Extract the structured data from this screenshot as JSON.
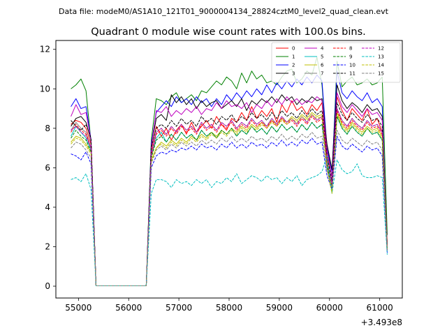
{
  "chart_data": {
    "type": "line",
    "suptitle": "Data file: modeM0/AS1A10_121T01_9000004134_28824cztM0_level2_quad_clean.evt",
    "title": "Quadrant 0 module wise count rates with 100.0s bins.",
    "xlabel": "",
    "ylabel": "",
    "x_offset_label": "+3.493e8",
    "xlim": [
      54550,
      61450
    ],
    "ylim": [
      -0.6,
      12.45
    ],
    "xticks": [
      55000,
      56000,
      57000,
      58000,
      59000,
      60000,
      61000
    ],
    "yticks": [
      0,
      2,
      4,
      6,
      8,
      10,
      12
    ],
    "x": [
      54850,
      54950,
      55050,
      55150,
      55250,
      55350,
      55450,
      55550,
      55650,
      55750,
      55850,
      55950,
      56050,
      56150,
      56250,
      56350,
      56450,
      56550,
      56650,
      56750,
      56850,
      56950,
      57050,
      57150,
      57250,
      57350,
      57450,
      57550,
      57650,
      57750,
      57850,
      57950,
      58050,
      58150,
      58250,
      58350,
      58450,
      58550,
      58650,
      58750,
      58850,
      58950,
      59050,
      59150,
      59250,
      59350,
      59450,
      59550,
      59650,
      59750,
      59850,
      59950,
      60050,
      60150,
      60250,
      60350,
      60450,
      60550,
      60650,
      60750,
      60850,
      60950,
      61050,
      61150
    ],
    "legend_location": "upper right",
    "series": [
      {
        "name": "0",
        "color": "#ff0000",
        "dash": "solid",
        "values": [
          8.2,
          8.4,
          8.3,
          8.0,
          7.2,
          0.02,
          0.02,
          0.02,
          0.02,
          0.02,
          0.02,
          0.02,
          0.02,
          0.02,
          0.02,
          0.02,
          6.9,
          8.1,
          7.6,
          8.0,
          7.4,
          7.9,
          8.2,
          7.7,
          8.3,
          7.8,
          8.1,
          8.4,
          8.0,
          8.6,
          8.2,
          7.9,
          8.5,
          8.3,
          8.8,
          8.4,
          9.1,
          8.5,
          8.9,
          8.6,
          9.0,
          8.3,
          9.2,
          8.8,
          9.4,
          8.9,
          9.1,
          8.7,
          9.2,
          8.9,
          9.3,
          6.6,
          5.6,
          9.6,
          8.9,
          8.4,
          9.0,
          8.7,
          8.4,
          9.0,
          8.2,
          8.5,
          7.8,
          2.2
        ]
      },
      {
        "name": "1",
        "color": "#008000",
        "dash": "solid",
        "values": [
          10.0,
          10.2,
          10.5,
          9.9,
          7.3,
          0.02,
          0.02,
          0.02,
          0.02,
          0.02,
          0.02,
          0.02,
          0.02,
          0.02,
          0.02,
          0.02,
          7.4,
          9.5,
          9.4,
          9.2,
          9.6,
          9.8,
          9.3,
          9.5,
          9.7,
          9.4,
          9.9,
          9.8,
          10.1,
          10.4,
          10.2,
          10.6,
          10.4,
          10.0,
          10.8,
          10.3,
          10.9,
          10.5,
          10.7,
          10.3,
          10.4,
          10.2,
          10.6,
          10.9,
          11.0,
          10.3,
          10.5,
          10.9,
          10.7,
          11.6,
          10.2,
          6.9,
          5.5,
          11.4,
          10.1,
          10.4,
          10.6,
          10.2,
          10.3,
          10.5,
          10.2,
          10.3,
          10.6,
          2.6
        ]
      },
      {
        "name": "2",
        "color": "#0000ff",
        "dash": "solid",
        "values": [
          9.1,
          9.5,
          9.0,
          9.1,
          7.4,
          0.02,
          0.02,
          0.02,
          0.02,
          0.02,
          0.02,
          0.02,
          0.02,
          0.02,
          0.02,
          0.02,
          7.2,
          8.8,
          9.1,
          9.4,
          9.1,
          9.6,
          9.3,
          9.5,
          9.2,
          9.6,
          9.3,
          9.5,
          9.1,
          9.5,
          9.2,
          9.7,
          9.4,
          9.8,
          9.5,
          9.9,
          9.6,
          10.0,
          9.7,
          10.2,
          9.8,
          10.3,
          10.0,
          10.4,
          10.1,
          10.5,
          10.2,
          10.6,
          10.3,
          10.7,
          10.4,
          7.0,
          5.8,
          10.9,
          9.8,
          9.5,
          9.9,
          9.6,
          9.4,
          9.8,
          9.3,
          9.5,
          9.1,
          1.8
        ]
      },
      {
        "name": "3",
        "color": "#000000",
        "dash": "solid",
        "values": [
          8.1,
          8.5,
          8.6,
          8.3,
          7.4,
          0.02,
          0.02,
          0.02,
          0.02,
          0.02,
          0.02,
          0.02,
          0.02,
          0.02,
          0.02,
          0.02,
          7.1,
          8.5,
          8.7,
          8.4,
          9.7,
          9.3,
          9.6,
          9.2,
          9.5,
          9.0,
          9.4,
          9.1,
          9.3,
          9.4,
          9.0,
          9.2,
          9.4,
          9.1,
          9.5,
          8.9,
          9.4,
          9.2,
          9.5,
          9.3,
          9.6,
          9.3,
          9.7,
          9.4,
          9.6,
          9.2,
          9.5,
          9.3,
          9.6,
          9.4,
          9.5,
          7.2,
          5.9,
          10.2,
          9.4,
          9.0,
          9.3,
          9.1,
          8.8,
          9.2,
          8.9,
          9.0,
          8.6,
          2.0
        ]
      },
      {
        "name": "4",
        "color": "#bf00bf",
        "dash": "solid",
        "values": [
          8.6,
          9.2,
          8.7,
          8.8,
          7.4,
          0.02,
          0.02,
          0.02,
          0.02,
          0.02,
          0.02,
          0.02,
          0.02,
          0.02,
          0.02,
          0.02,
          7.0,
          8.9,
          8.8,
          9.1,
          8.6,
          8.9,
          8.7,
          9.0,
          8.8,
          9.1,
          8.7,
          9.0,
          8.9,
          9.3,
          9.0,
          9.4,
          9.1,
          9.2,
          9.0,
          9.3,
          8.8,
          9.2,
          9.0,
          9.4,
          9.1,
          9.5,
          9.2,
          9.6,
          9.3,
          9.5,
          9.2,
          9.4,
          9.3,
          9.6,
          9.4,
          6.9,
          5.5,
          9.8,
          9.1,
          8.8,
          9.2,
          8.9,
          8.6,
          9.0,
          8.7,
          8.8,
          8.4,
          2.1
        ]
      },
      {
        "name": "5",
        "color": "#00bfbf",
        "dash": "solid",
        "values": [
          7.6,
          8.1,
          7.8,
          7.5,
          6.9,
          0.02,
          0.02,
          0.02,
          0.02,
          0.02,
          0.02,
          0.02,
          0.02,
          0.02,
          0.02,
          0.02,
          6.6,
          7.5,
          7.8,
          7.3,
          7.7,
          7.4,
          7.8,
          7.5,
          7.7,
          7.4,
          7.9,
          7.6,
          7.8,
          7.5,
          7.9,
          7.7,
          8.0,
          7.6,
          7.9,
          7.7,
          8.1,
          7.8,
          8.0,
          7.7,
          8.1,
          7.8,
          8.2,
          7.9,
          8.1,
          7.8,
          8.2,
          7.9,
          8.3,
          8.0,
          8.2,
          6.2,
          4.9,
          8.6,
          8.0,
          7.7,
          8.1,
          7.8,
          7.6,
          8.0,
          7.7,
          7.8,
          7.4,
          1.9
        ]
      },
      {
        "name": "6",
        "color": "#bfbf00",
        "dash": "solid",
        "values": [
          7.3,
          7.6,
          7.5,
          7.2,
          6.8,
          0.02,
          0.02,
          0.02,
          0.02,
          0.02,
          0.02,
          0.02,
          0.02,
          0.02,
          0.02,
          0.02,
          6.4,
          7.0,
          7.3,
          7.1,
          7.4,
          7.2,
          7.5,
          7.3,
          7.6,
          7.4,
          7.7,
          7.5,
          7.8,
          7.6,
          7.9,
          7.7,
          8.0,
          7.8,
          8.1,
          7.9,
          8.2,
          8.0,
          8.3,
          8.1,
          8.4,
          8.2,
          8.5,
          8.3,
          8.6,
          8.4,
          8.7,
          8.5,
          8.8,
          8.6,
          8.7,
          6.0,
          4.8,
          8.8,
          8.2,
          7.9,
          8.3,
          8.0,
          7.8,
          8.1,
          7.9,
          8.0,
          7.6,
          1.9
        ]
      },
      {
        "name": "7",
        "color": "#808080",
        "dash": "solid",
        "values": [
          7.9,
          8.3,
          8.0,
          7.8,
          7.0,
          0.02,
          0.02,
          0.02,
          0.02,
          0.02,
          0.02,
          0.02,
          0.02,
          0.02,
          0.02,
          0.02,
          6.7,
          7.8,
          8.0,
          7.7,
          8.1,
          7.8,
          8.2,
          7.9,
          8.1,
          7.8,
          8.3,
          8.0,
          8.2,
          7.9,
          8.3,
          8.1,
          8.4,
          8.0,
          8.3,
          8.1,
          8.5,
          8.2,
          8.4,
          8.1,
          8.5,
          8.2,
          8.6,
          8.3,
          8.5,
          8.2,
          8.6,
          8.3,
          8.7,
          8.4,
          8.6,
          6.4,
          5.2,
          9.0,
          8.4,
          8.1,
          8.5,
          8.2,
          8.0,
          8.4,
          8.1,
          8.2,
          7.8,
          2.0
        ]
      },
      {
        "name": "8",
        "color": "#ff0000",
        "dash": "dashed",
        "values": [
          7.8,
          8.2,
          7.9,
          7.7,
          7.0,
          0.02,
          0.02,
          0.02,
          0.02,
          0.02,
          0.02,
          0.02,
          0.02,
          0.02,
          0.02,
          0.02,
          6.6,
          7.7,
          7.9,
          7.6,
          8.0,
          7.7,
          8.1,
          7.8,
          8.0,
          7.7,
          8.2,
          7.9,
          8.1,
          7.8,
          8.2,
          8.0,
          8.3,
          7.9,
          8.2,
          8.0,
          8.4,
          8.1,
          8.3,
          8.0,
          8.4,
          8.1,
          8.5,
          8.2,
          8.4,
          8.1,
          8.5,
          8.2,
          8.6,
          8.3,
          8.5,
          6.3,
          5.1,
          8.9,
          8.3,
          8.0,
          8.4,
          8.1,
          7.9,
          8.3,
          8.0,
          8.1,
          7.7,
          2.0
        ]
      },
      {
        "name": "9",
        "color": "#008000",
        "dash": "dashed",
        "values": [
          7.5,
          7.9,
          7.6,
          7.4,
          6.8,
          0.02,
          0.02,
          0.02,
          0.02,
          0.02,
          0.02,
          0.02,
          0.02,
          0.02,
          0.02,
          0.02,
          6.5,
          7.4,
          7.6,
          7.3,
          7.7,
          7.4,
          7.8,
          7.5,
          7.7,
          7.4,
          7.9,
          7.6,
          7.8,
          7.5,
          7.9,
          7.7,
          8.0,
          7.6,
          7.9,
          7.7,
          8.1,
          7.8,
          8.0,
          7.7,
          8.1,
          7.8,
          8.2,
          7.9,
          8.1,
          7.8,
          8.2,
          7.9,
          8.3,
          8.0,
          8.2,
          6.1,
          5.0,
          8.6,
          8.0,
          7.7,
          8.1,
          7.8,
          7.6,
          8.0,
          7.7,
          7.8,
          7.4,
          1.9
        ]
      },
      {
        "name": "10",
        "color": "#0000ff",
        "dash": "dashed",
        "values": [
          6.7,
          6.6,
          6.4,
          6.8,
          6.2,
          0.02,
          0.02,
          0.02,
          0.02,
          0.02,
          0.02,
          0.02,
          0.02,
          0.02,
          0.02,
          0.02,
          6.0,
          6.6,
          6.8,
          6.7,
          6.9,
          6.8,
          7.0,
          6.9,
          7.1,
          6.9,
          7.2,
          7.0,
          7.1,
          6.9,
          7.2,
          7.0,
          7.3,
          7.0,
          7.2,
          7.0,
          7.3,
          7.1,
          7.2,
          7.0,
          7.3,
          7.1,
          7.4,
          7.1,
          7.3,
          7.1,
          7.4,
          7.2,
          7.5,
          7.2,
          7.3,
          5.6,
          4.9,
          7.6,
          7.1,
          6.9,
          7.2,
          7.0,
          6.8,
          7.1,
          6.9,
          7.0,
          6.6,
          1.7
        ]
      },
      {
        "name": "11",
        "color": "#000000",
        "dash": "dashed",
        "values": [
          8.4,
          8.1,
          7.9,
          8.2,
          7.5,
          0.02,
          0.02,
          0.02,
          0.02,
          0.02,
          0.02,
          0.02,
          0.02,
          0.02,
          0.02,
          0.02,
          7.0,
          8.0,
          8.2,
          8.0,
          8.4,
          8.1,
          8.5,
          8.2,
          8.4,
          8.1,
          8.6,
          8.3,
          8.5,
          8.2,
          8.6,
          8.4,
          8.7,
          8.3,
          8.6,
          8.4,
          8.8,
          8.5,
          8.7,
          8.4,
          8.8,
          8.5,
          8.9,
          8.6,
          8.8,
          8.5,
          8.9,
          8.6,
          9.0,
          8.7,
          8.9,
          6.6,
          5.3,
          9.3,
          8.7,
          8.4,
          8.8,
          8.5,
          8.3,
          8.7,
          8.4,
          8.5,
          8.1,
          2.1
        ]
      },
      {
        "name": "12",
        "color": "#bf00bf",
        "dash": "dashed",
        "values": [
          7.9,
          8.1,
          7.8,
          7.6,
          7.0,
          0.02,
          0.02,
          0.02,
          0.02,
          0.02,
          0.02,
          0.02,
          0.02,
          0.02,
          0.02,
          0.02,
          6.7,
          7.8,
          8.0,
          7.7,
          8.1,
          7.8,
          8.2,
          7.9,
          8.1,
          7.8,
          8.3,
          8.0,
          8.2,
          7.9,
          8.3,
          8.1,
          8.4,
          8.0,
          8.3,
          8.1,
          8.5,
          8.2,
          8.4,
          8.1,
          8.5,
          8.2,
          8.6,
          8.3,
          8.5,
          8.2,
          8.6,
          8.3,
          8.7,
          8.4,
          8.6,
          6.4,
          5.2,
          9.0,
          8.4,
          8.1,
          8.5,
          8.2,
          8.0,
          8.4,
          8.1,
          8.2,
          7.8,
          2.0
        ]
      },
      {
        "name": "13",
        "color": "#00bfbf",
        "dash": "dashed",
        "values": [
          5.4,
          5.5,
          5.3,
          5.7,
          4.9,
          0.02,
          0.02,
          0.02,
          0.02,
          0.02,
          0.02,
          0.02,
          0.02,
          0.02,
          0.02,
          0.02,
          4.7,
          5.4,
          5.4,
          5.3,
          5.0,
          5.4,
          5.2,
          5.3,
          5.1,
          5.4,
          5.2,
          5.4,
          5.0,
          5.3,
          5.2,
          5.5,
          5.3,
          5.7,
          5.2,
          5.4,
          5.6,
          5.5,
          5.3,
          5.6,
          5.4,
          5.5,
          5.2,
          5.5,
          5.3,
          5.6,
          5.1,
          5.4,
          5.5,
          5.6,
          5.8,
          6.6,
          4.7,
          6.4,
          5.9,
          5.7,
          5.8,
          6.2,
          5.6,
          5.5,
          5.5,
          5.6,
          5.5,
          1.6
        ]
      },
      {
        "name": "14",
        "color": "#bfbf00",
        "dash": "dashed",
        "values": [
          7.2,
          7.5,
          7.4,
          7.1,
          6.7,
          0.02,
          0.02,
          0.02,
          0.02,
          0.02,
          0.02,
          0.02,
          0.02,
          0.02,
          0.02,
          0.02,
          6.3,
          7.0,
          7.2,
          7.0,
          7.3,
          7.1,
          7.4,
          7.2,
          7.5,
          7.3,
          7.6,
          7.4,
          7.7,
          7.5,
          7.8,
          7.6,
          7.9,
          7.7,
          8.0,
          7.8,
          8.1,
          7.9,
          8.2,
          8.0,
          8.3,
          8.1,
          8.4,
          8.2,
          8.5,
          8.3,
          8.6,
          8.4,
          8.7,
          8.5,
          8.6,
          5.9,
          4.7,
          8.7,
          8.1,
          7.8,
          8.2,
          7.9,
          7.7,
          8.0,
          7.8,
          7.9,
          7.5,
          1.9
        ]
      },
      {
        "name": "15",
        "color": "#808080",
        "dash": "dashed",
        "values": [
          7.0,
          7.3,
          7.2,
          6.9,
          6.5,
          0.02,
          0.02,
          0.02,
          0.02,
          0.02,
          0.02,
          0.02,
          0.02,
          0.02,
          0.02,
          0.02,
          6.2,
          6.9,
          7.1,
          6.9,
          7.2,
          7.0,
          7.3,
          7.1,
          7.3,
          7.1,
          7.4,
          7.2,
          7.4,
          7.2,
          7.5,
          7.3,
          7.6,
          7.3,
          7.5,
          7.3,
          7.6,
          7.4,
          7.5,
          7.3,
          7.6,
          7.4,
          7.7,
          7.4,
          7.6,
          7.4,
          7.7,
          7.5,
          7.8,
          7.5,
          7.6,
          5.9,
          5.0,
          7.9,
          7.4,
          7.2,
          7.5,
          7.3,
          7.1,
          7.4,
          7.2,
          7.3,
          6.9,
          1.8
        ]
      }
    ]
  }
}
